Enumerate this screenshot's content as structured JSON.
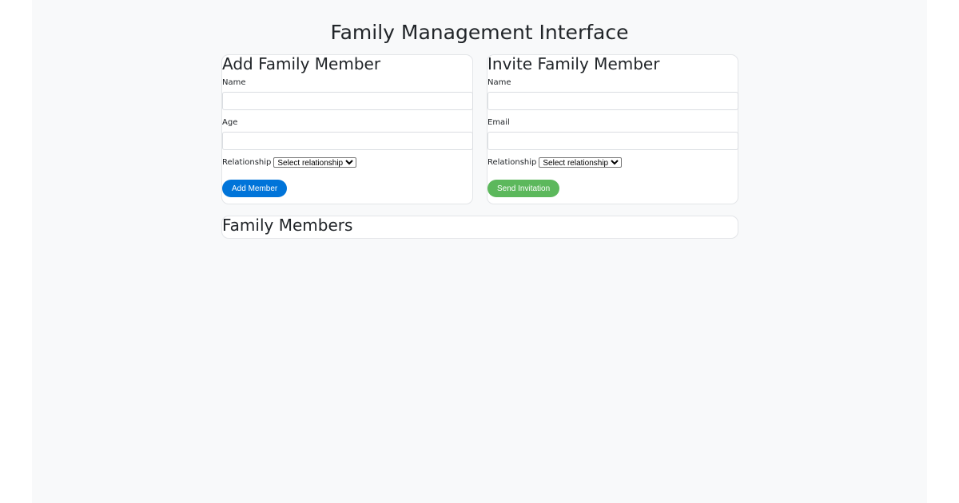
{
  "title": "Family Management Interface",
  "add": {
    "heading": "Add Family Member",
    "name_label": "Name",
    "age_label": "Age",
    "relationship_label": "Relationship",
    "relationship_selected": "Select relationship",
    "button": "Add Member",
    "button_color": "#0074d9"
  },
  "invite": {
    "heading": "Invite Family Member",
    "name_label": "Name",
    "email_label": "Email",
    "relationship_label": "Relationship",
    "relationship_selected": "Select relationship",
    "button": "Send Invitation",
    "button_color": "#5cb85c"
  },
  "members": {
    "heading": "Family Members"
  }
}
